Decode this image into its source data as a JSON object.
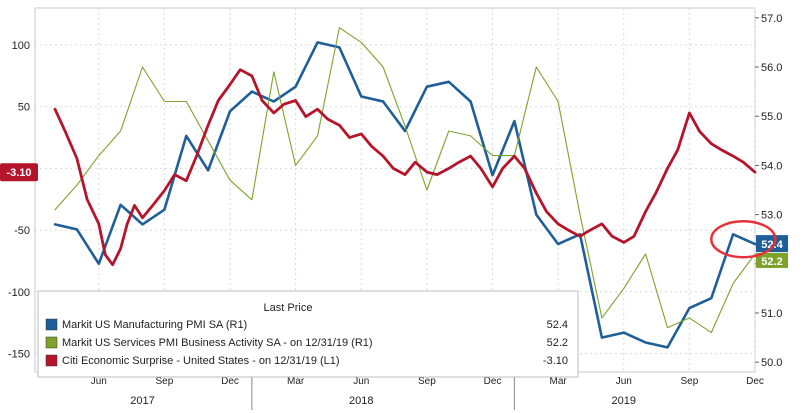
{
  "chart_data": {
    "type": "line",
    "left_axis": {
      "ylim": [
        -165,
        130
      ],
      "ticks": [
        100,
        50,
        0,
        -50,
        -100,
        -150
      ],
      "tick_labels": [
        "100",
        "50",
        "0",
        "-50",
        "-100",
        "-150"
      ]
    },
    "right_axis": {
      "ylim": [
        49.8,
        57.2
      ],
      "ticks": [
        57.0,
        56.0,
        55.0,
        54.0,
        53.0,
        52.0,
        51.0,
        50.0
      ],
      "tick_labels": [
        "57.0",
        "56.0",
        "55.0",
        "54.0",
        "53.0",
        "52.0",
        "51.0",
        "50.0"
      ]
    },
    "x_axis": {
      "range": [
        "2017-04",
        "2019-12"
      ],
      "month_ticks": [
        {
          "label": "Jun",
          "month": "2017-06"
        },
        {
          "label": "Sep",
          "month": "2017-09"
        },
        {
          "label": "Dec",
          "month": "2017-12"
        },
        {
          "label": "Mar",
          "month": "2018-03"
        },
        {
          "label": "Jun",
          "month": "2018-06"
        },
        {
          "label": "Sep",
          "month": "2018-09"
        },
        {
          "label": "Dec",
          "month": "2018-12"
        },
        {
          "label": "Mar",
          "month": "2019-03"
        },
        {
          "label": "Jun",
          "month": "2019-06"
        },
        {
          "label": "Sep",
          "month": "2019-09"
        },
        {
          "label": "Dec",
          "month": "2019-12"
        }
      ],
      "year_labels": [
        {
          "label": "2017",
          "month": "2017-08"
        },
        {
          "label": "2018",
          "month": "2018-06"
        },
        {
          "label": "2019",
          "month": "2019-06"
        }
      ]
    },
    "series": [
      {
        "name": "Markit US Manufacturing PMI SA  (R1)",
        "last_price": "52.4",
        "axis": "right",
        "color": "#1f5f99",
        "points": [
          [
            "2017-04",
            52.8
          ],
          [
            "2017-05",
            52.7
          ],
          [
            "2017-06",
            52.0
          ],
          [
            "2017-07",
            53.2
          ],
          [
            "2017-08",
            52.8
          ],
          [
            "2017-09",
            53.1
          ],
          [
            "2017-10",
            54.6
          ],
          [
            "2017-11",
            53.9
          ],
          [
            "2017-12",
            55.1
          ],
          [
            "2018-01",
            55.5
          ],
          [
            "2018-02",
            55.3
          ],
          [
            "2018-03",
            55.6
          ],
          [
            "2018-04",
            56.5
          ],
          [
            "2018-05",
            56.4
          ],
          [
            "2018-06",
            55.4
          ],
          [
            "2018-07",
            55.3
          ],
          [
            "2018-08",
            54.7
          ],
          [
            "2018-09",
            55.6
          ],
          [
            "2018-10",
            55.7
          ],
          [
            "2018-11",
            55.3
          ],
          [
            "2018-12",
            53.8
          ],
          [
            "2019-01",
            54.9
          ],
          [
            "2019-02",
            53.0
          ],
          [
            "2019-03",
            52.4
          ],
          [
            "2019-04",
            52.6
          ],
          [
            "2019-05",
            50.5
          ],
          [
            "2019-06",
            50.6
          ],
          [
            "2019-07",
            50.4
          ],
          [
            "2019-08",
            50.3
          ],
          [
            "2019-09",
            51.1
          ],
          [
            "2019-10",
            51.3
          ],
          [
            "2019-11",
            52.6
          ],
          [
            "2019-12",
            52.4
          ]
        ]
      },
      {
        "name": "Markit US Services PMI Business Activity SA  - on 12/31/19  (R1)",
        "last_price": "52.2",
        "axis": "right",
        "color": "#7da32b",
        "points": [
          [
            "2017-04",
            53.1
          ],
          [
            "2017-05",
            53.6
          ],
          [
            "2017-06",
            54.2
          ],
          [
            "2017-07",
            54.7
          ],
          [
            "2017-08",
            56.0
          ],
          [
            "2017-09",
            55.3
          ],
          [
            "2017-10",
            55.3
          ],
          [
            "2017-11",
            54.5
          ],
          [
            "2017-12",
            53.7
          ],
          [
            "2018-01",
            53.3
          ],
          [
            "2018-02",
            55.9
          ],
          [
            "2018-03",
            54.0
          ],
          [
            "2018-04",
            54.6
          ],
          [
            "2018-05",
            56.8
          ],
          [
            "2018-06",
            56.5
          ],
          [
            "2018-07",
            56.0
          ],
          [
            "2018-08",
            54.8
          ],
          [
            "2018-09",
            53.5
          ],
          [
            "2018-10",
            54.7
          ],
          [
            "2018-11",
            54.6
          ],
          [
            "2018-12",
            54.2
          ],
          [
            "2019-01",
            54.2
          ],
          [
            "2019-02",
            56.0
          ],
          [
            "2019-03",
            55.3
          ],
          [
            "2019-04",
            53.0
          ],
          [
            "2019-05",
            50.9
          ],
          [
            "2019-06",
            51.5
          ],
          [
            "2019-07",
            52.2
          ],
          [
            "2019-08",
            50.7
          ],
          [
            "2019-09",
            50.9
          ],
          [
            "2019-10",
            50.6
          ],
          [
            "2019-11",
            51.6
          ],
          [
            "2019-12",
            52.2
          ]
        ]
      },
      {
        "name": "Citi Economic Surprise - United States  - on 12/31/19  (L1)",
        "last_price": "-3.10",
        "axis": "left",
        "color": "#b5152b",
        "points": [
          [
            "2017-04",
            48
          ],
          [
            "2017-04-15",
            30
          ],
          [
            "2017-05",
            8
          ],
          [
            "2017-05-15",
            -25
          ],
          [
            "2017-06",
            -45
          ],
          [
            "2017-06-10",
            -70
          ],
          [
            "2017-06-20",
            -78
          ],
          [
            "2017-07",
            -65
          ],
          [
            "2017-07-10",
            -45
          ],
          [
            "2017-07-20",
            -30
          ],
          [
            "2017-08",
            -40
          ],
          [
            "2017-08-15",
            -30
          ],
          [
            "2017-09",
            -18
          ],
          [
            "2017-09-15",
            -5
          ],
          [
            "2017-10",
            -10
          ],
          [
            "2017-10-15",
            10
          ],
          [
            "2017-11",
            35
          ],
          [
            "2017-11-15",
            55
          ],
          [
            "2017-12",
            68
          ],
          [
            "2017-12-15",
            80
          ],
          [
            "2018-01",
            75
          ],
          [
            "2018-01-15",
            55
          ],
          [
            "2018-02",
            45
          ],
          [
            "2018-02-15",
            52
          ],
          [
            "2018-03",
            55
          ],
          [
            "2018-03-15",
            42
          ],
          [
            "2018-04",
            48
          ],
          [
            "2018-04-15",
            40
          ],
          [
            "2018-05",
            35
          ],
          [
            "2018-05-15",
            25
          ],
          [
            "2018-06",
            28
          ],
          [
            "2018-06-15",
            18
          ],
          [
            "2018-07",
            10
          ],
          [
            "2018-07-15",
            0
          ],
          [
            "2018-08",
            -5
          ],
          [
            "2018-08-15",
            5
          ],
          [
            "2018-09",
            -3
          ],
          [
            "2018-09-15",
            -5
          ],
          [
            "2018-10",
            0
          ],
          [
            "2018-10-15",
            5
          ],
          [
            "2018-11",
            10
          ],
          [
            "2018-11-15",
            0
          ],
          [
            "2018-12",
            -15
          ],
          [
            "2018-12-15",
            0
          ],
          [
            "2019-01",
            10
          ],
          [
            "2019-01-15",
            0
          ],
          [
            "2019-02",
            -20
          ],
          [
            "2019-02-15",
            -35
          ],
          [
            "2019-03",
            -45
          ],
          [
            "2019-03-15",
            -50
          ],
          [
            "2019-04",
            -55
          ],
          [
            "2019-04-15",
            -50
          ],
          [
            "2019-05",
            -45
          ],
          [
            "2019-05-15",
            -55
          ],
          [
            "2019-06",
            -60
          ],
          [
            "2019-06-15",
            -55
          ],
          [
            "2019-07",
            -35
          ],
          [
            "2019-07-15",
            -20
          ],
          [
            "2019-08",
            0
          ],
          [
            "2019-08-15",
            15
          ],
          [
            "2019-09",
            45
          ],
          [
            "2019-09-15",
            30
          ],
          [
            "2019-10",
            20
          ],
          [
            "2019-10-15",
            15
          ],
          [
            "2019-11",
            10
          ],
          [
            "2019-11-15",
            5
          ],
          [
            "2019-12",
            -3.1
          ]
        ]
      }
    ],
    "legend": {
      "title": "Last Price",
      "placement": "bottom-left"
    },
    "badges": {
      "left": "-3.10",
      "right_manufacturing": "52.4",
      "right_services": "52.2"
    },
    "annotation": "red circle around late-2019 PMI values"
  }
}
